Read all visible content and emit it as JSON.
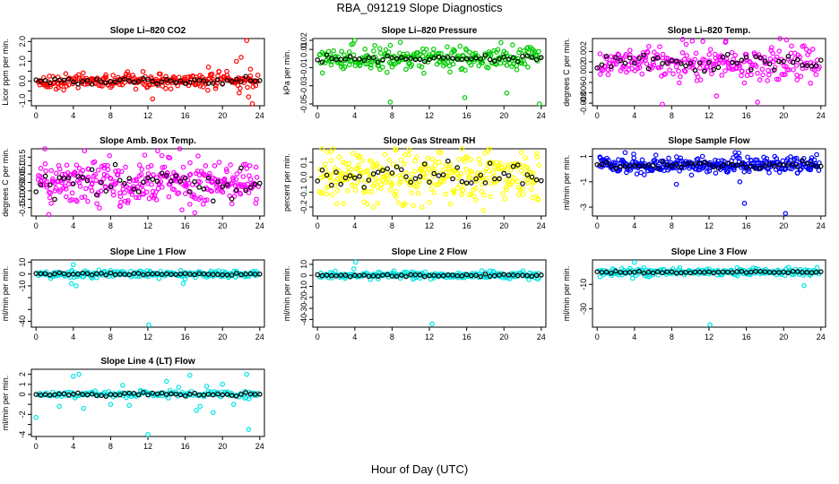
{
  "page": {
    "title": "RBA_091219  Slope Diagnostics",
    "xlabel": "Hour of Day (UTC)"
  },
  "chart_data": [
    {
      "type": "scatter",
      "title": "Slope Li–820 CO2",
      "ylabel": "Licor ppm per min.",
      "xlim": [
        -0.5,
        24.5
      ],
      "ylim": [
        -1.25,
        2.15
      ],
      "xticks": [
        0,
        4,
        8,
        12,
        16,
        20,
        24
      ],
      "yticks": [
        -1.0,
        -0.5,
        0.0,
        0.5,
        1.0,
        1.5,
        2.0
      ],
      "ytick_labels": [
        "-1.0",
        "",
        "0.0",
        "",
        "1.0",
        "",
        "2.0"
      ],
      "color": "#ff0000",
      "center": 0.0,
      "spread": 0.18,
      "black_spread": 0.1,
      "count": 260,
      "outliers": [
        [
          21.5,
          1.0
        ],
        [
          22.0,
          1.2
        ],
        [
          22.6,
          2.05
        ],
        [
          23.0,
          0.6
        ],
        [
          21.8,
          -0.6
        ],
        [
          22.8,
          -0.8
        ],
        [
          23.2,
          -1.15
        ],
        [
          18.5,
          0.7
        ],
        [
          12.5,
          -0.9
        ]
      ]
    },
    {
      "type": "scatter",
      "title": "Slope Li–820 Pressure",
      "ylabel": "kPa per min.",
      "xlim": [
        -0.5,
        24.5
      ],
      "ylim": [
        -0.052,
        0.022
      ],
      "xticks": [
        0,
        4,
        8,
        12,
        16,
        20,
        24
      ],
      "yticks": [
        -0.05,
        -0.03,
        -0.01,
        0.01,
        0.02
      ],
      "ytick_labels": [
        "-0.05",
        "-0.03",
        "-0.01",
        "0.01",
        "0.02"
      ],
      "color": "#00cc00",
      "center": 0.0,
      "spread": 0.006,
      "black_spread": 0.002,
      "count": 260,
      "outliers": [
        [
          4.0,
          0.02
        ],
        [
          7.8,
          -0.048
        ],
        [
          15.8,
          -0.043
        ],
        [
          20.3,
          -0.038
        ],
        [
          23.8,
          -0.05
        ]
      ]
    },
    {
      "type": "scatter",
      "title": "Slope Li–820 Temp.",
      "ylabel": "degrees C per min.",
      "xlim": [
        -0.5,
        24.5
      ],
      "ylim": [
        -0.0085,
        0.0045
      ],
      "xticks": [
        0,
        4,
        8,
        12,
        16,
        20,
        24
      ],
      "yticks": [
        -0.008,
        -0.006,
        -0.004,
        -0.002,
        0.0,
        0.002
      ],
      "ytick_labels": [
        "-0.008",
        "-0.006",
        "",
        "-0.002",
        "",
        "0.002"
      ],
      "color": "#ff00ff",
      "center": 0.0,
      "spread": 0.0016,
      "black_spread": 0.0008,
      "count": 260,
      "outliers": [
        [
          7.0,
          -0.0082
        ],
        [
          12.8,
          -0.0066
        ],
        [
          17.2,
          -0.0078
        ],
        [
          10.2,
          0.004
        ],
        [
          13.8,
          0.004
        ]
      ]
    },
    {
      "type": "scatter",
      "title": "Slope Amb. Box Temp.",
      "ylabel": "degrees C per min.",
      "xlim": [
        -0.5,
        24.5
      ],
      "ylim": [
        -0.2,
        0.2
      ],
      "xticks": [
        0,
        4,
        8,
        12,
        16,
        20,
        24
      ],
      "yticks": [
        -0.15,
        -0.1,
        -0.05,
        0.0,
        0.05,
        0.1,
        0.15
      ],
      "ytick_labels": [
        "-0.15",
        "-0.10",
        "-0.05",
        "0.00",
        "0.05",
        "0.10",
        "0.15"
      ],
      "color": "#ff00ff",
      "center": 0.0,
      "spread": 0.07,
      "black_spread": 0.04,
      "count": 330,
      "outliers": [
        [
          13.5,
          0.16
        ],
        [
          14.2,
          0.15
        ],
        [
          9.0,
          -0.14
        ],
        [
          16.5,
          -0.13
        ]
      ]
    },
    {
      "type": "scatter",
      "title": "Slope Gas Stream RH",
      "ylabel": "percent per min.",
      "xlim": [
        -0.5,
        24.5
      ],
      "ylim": [
        -0.26,
        0.19
      ],
      "xticks": [
        0,
        4,
        8,
        12,
        16,
        20,
        24
      ],
      "yticks": [
        -0.2,
        -0.1,
        0.0,
        0.1
      ],
      "ytick_labels": [
        "-0.2",
        "-0.1",
        "0.0",
        "0.1"
      ],
      "color": "#ffff00",
      "center": 0.0,
      "spread": 0.08,
      "black_spread": 0.04,
      "count": 330,
      "outliers": [
        [
          3.8,
          0.16
        ],
        [
          6.0,
          -0.2
        ],
        [
          17.8,
          -0.22
        ],
        [
          11.2,
          -0.2
        ],
        [
          4.5,
          0.14
        ]
      ]
    },
    {
      "type": "scatter",
      "title": "Slope Sample Flow",
      "ylabel": "ml/min per min.",
      "xlim": [
        -0.5,
        24.5
      ],
      "ylim": [
        -3.7,
        1.6
      ],
      "xticks": [
        0,
        4,
        8,
        12,
        16,
        20,
        24
      ],
      "yticks": [
        -3,
        -1,
        1
      ],
      "ytick_labels": [
        "-3",
        "-1",
        "1"
      ],
      "color": "#0000ff",
      "center": 0.3,
      "spread": 0.3,
      "black_spread": 0.15,
      "count": 330,
      "outliers": [
        [
          3.0,
          1.3
        ],
        [
          6.3,
          1.1
        ],
        [
          11.3,
          1.0
        ],
        [
          14.8,
          1.3
        ],
        [
          15.3,
          -1.0
        ],
        [
          15.8,
          -2.7
        ],
        [
          20.2,
          -3.5
        ],
        [
          8.5,
          -1.2
        ]
      ]
    },
    {
      "type": "scatter",
      "title": "Slope Line 1 Flow",
      "ylabel": "ml/min per min.",
      "xlim": [
        -0.5,
        24.5
      ],
      "ylim": [
        -45,
        12
      ],
      "xticks": [
        0,
        4,
        8,
        12,
        16,
        20,
        24
      ],
      "yticks": [
        -40,
        -30,
        -20,
        -10,
        0,
        10
      ],
      "ytick_labels": [
        "-40",
        "",
        "",
        "-10",
        "0",
        "10"
      ],
      "color": "#00e5e5",
      "center": 0.0,
      "spread": 1.5,
      "black_spread": 0.5,
      "count": 220,
      "outliers": [
        [
          4.0,
          8.0
        ],
        [
          3.8,
          -8.0
        ],
        [
          4.3,
          -10.0
        ],
        [
          12.1,
          -43.0
        ],
        [
          15.8,
          -8.0
        ],
        [
          8.0,
          3.0
        ]
      ]
    },
    {
      "type": "scatter",
      "title": "Slope Line 2 Flow",
      "ylabel": "ml/min per min.",
      "xlim": [
        -0.5,
        24.5
      ],
      "ylim": [
        -47,
        14
      ],
      "xticks": [
        0,
        4,
        8,
        12,
        16,
        20,
        24
      ],
      "yticks": [
        -40,
        -30,
        -20,
        -10,
        0,
        10
      ],
      "ytick_labels": [
        "-40",
        "-30",
        "-20",
        "-10",
        "0",
        "10"
      ],
      "color": "#00e5e5",
      "center": 0.0,
      "spread": 1.5,
      "black_spread": 0.5,
      "count": 220,
      "outliers": [
        [
          4.1,
          12.0
        ],
        [
          3.9,
          6.0
        ],
        [
          12.3,
          -44.0
        ],
        [
          8.2,
          4.0
        ],
        [
          18.5,
          4.0
        ]
      ]
    },
    {
      "type": "scatter",
      "title": "Slope Line 3 Flow",
      "ylabel": "ml/min per min.",
      "xlim": [
        -0.5,
        24.5
      ],
      "ylim": [
        -45,
        10
      ],
      "xticks": [
        0,
        4,
        8,
        12,
        16,
        20,
        24
      ],
      "yticks": [
        -30,
        -10
      ],
      "ytick_labels": [
        "-30",
        "-10"
      ],
      "color": "#00e5e5",
      "center": 0.0,
      "spread": 1.5,
      "black_spread": 0.5,
      "count": 220,
      "outliers": [
        [
          4.0,
          8.0
        ],
        [
          3.8,
          -5.0
        ],
        [
          12.1,
          -43.0
        ],
        [
          22.2,
          -11.0
        ],
        [
          20.5,
          4.0
        ]
      ]
    },
    {
      "type": "scatter",
      "title": "Slope Line 4 (LT) Flow",
      "ylabel": "ml/min per min.",
      "xlim": [
        -0.5,
        24.5
      ],
      "ylim": [
        -4.2,
        2.5
      ],
      "xticks": [
        0,
        4,
        8,
        12,
        16,
        20,
        24
      ],
      "yticks": [
        -4,
        -3,
        -2,
        -1,
        0,
        1,
        2
      ],
      "ytick_labels": [
        "-4",
        "",
        "-2",
        "",
        "0",
        "1",
        "2"
      ],
      "color": "#00e5e5",
      "center": 0.0,
      "spread": 0.15,
      "black_spread": 0.1,
      "count": 160,
      "outliers": [
        [
          0.0,
          -2.3
        ],
        [
          2.5,
          -1.2
        ],
        [
          4.0,
          1.8
        ],
        [
          4.6,
          2.0
        ],
        [
          5.1,
          -1.4
        ],
        [
          9.3,
          0.9
        ],
        [
          10.0,
          -1.1
        ],
        [
          14.0,
          1.3
        ],
        [
          15.3,
          0.7
        ],
        [
          16.5,
          1.9
        ],
        [
          17.2,
          -1.6
        ],
        [
          17.6,
          -1.2
        ],
        [
          18.3,
          0.8
        ],
        [
          19.0,
          -1.8
        ],
        [
          20.0,
          1.0
        ],
        [
          21.2,
          -1.0
        ],
        [
          22.6,
          2.0
        ],
        [
          22.8,
          -3.5
        ],
        [
          12.0,
          -4.0
        ],
        [
          8.0,
          -1.0
        ]
      ]
    }
  ]
}
